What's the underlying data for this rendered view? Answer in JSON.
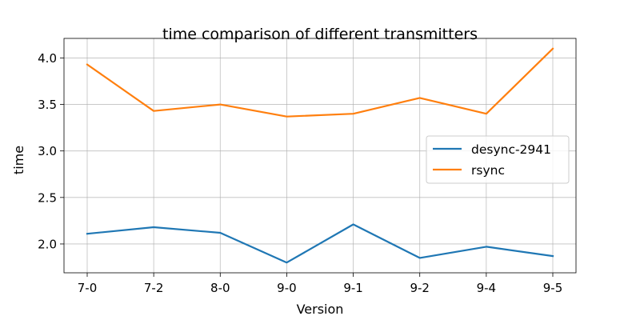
{
  "chart_data": {
    "type": "line",
    "title": "time comparison of different transmitters",
    "xlabel": "Version",
    "ylabel": "time",
    "categories": [
      "7-0",
      "7-2",
      "8-0",
      "9-0",
      "9-1",
      "9-2",
      "9-4",
      "9-5"
    ],
    "ylim": [
      1.69,
      4.21
    ],
    "yticks": [
      2.0,
      2.5,
      3.0,
      3.5,
      4.0
    ],
    "ytick_labels": [
      "2.0",
      "2.5",
      "3.0",
      "3.5",
      "4.0"
    ],
    "grid": true,
    "legend_position": "center-right",
    "series": [
      {
        "name": "desync-2941",
        "color": "#1f77b4",
        "values": [
          2.11,
          2.18,
          2.12,
          1.8,
          2.21,
          1.85,
          1.97,
          1.87
        ]
      },
      {
        "name": "rsync",
        "color": "#ff7f0e",
        "values": [
          3.93,
          3.43,
          3.5,
          3.37,
          3.4,
          3.57,
          3.4,
          4.1
        ]
      }
    ]
  }
}
